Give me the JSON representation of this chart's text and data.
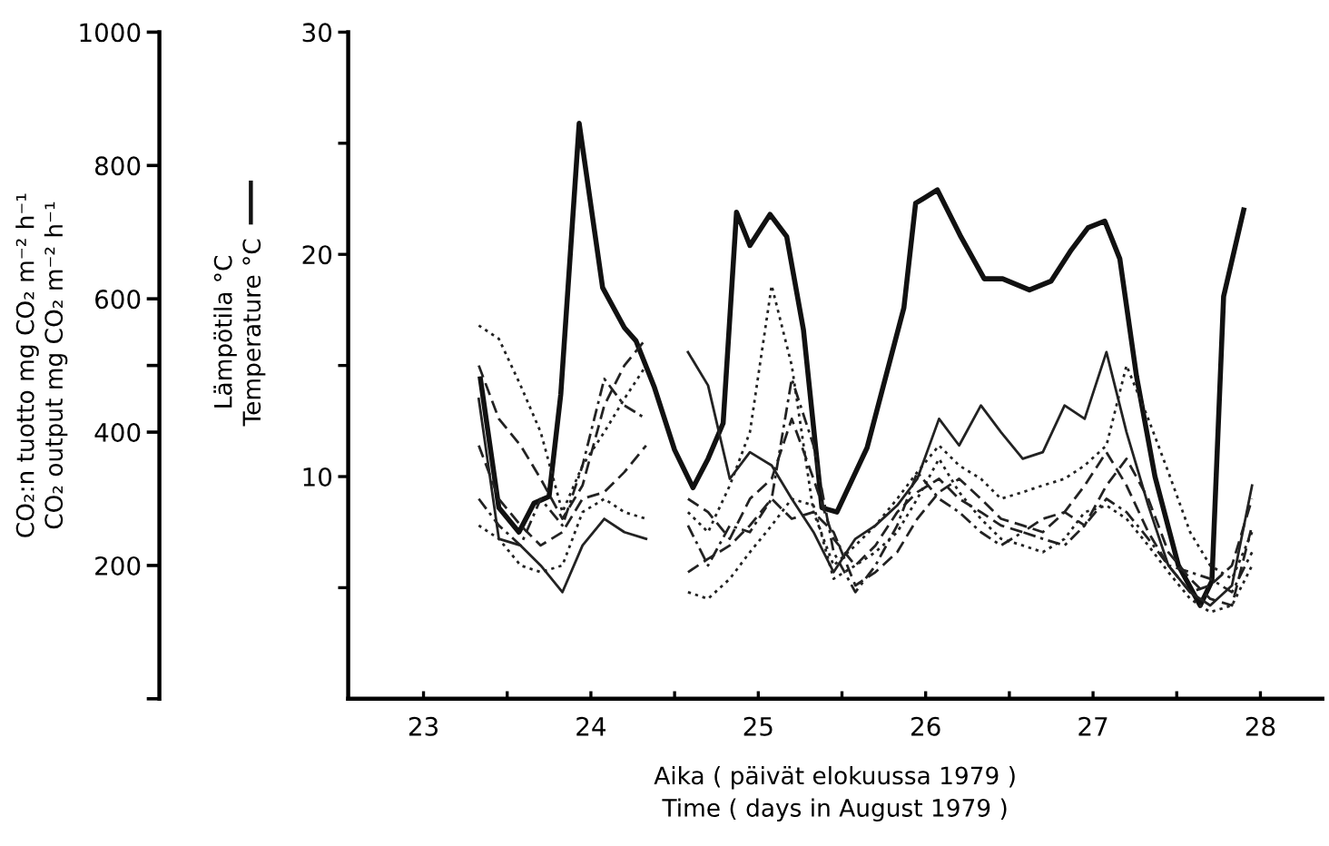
{
  "chart_data": {
    "type": "line",
    "xlabel": "Aika ( päivät elokuussa 1979 )\nTime ( days in August 1979 )",
    "ylabel": "CO₂:n tuotto mg CO₂ m⁻² h⁻¹\nCO₂ output mg CO₂ m⁻² h⁻¹",
    "y2label": "Lämpötila °C\nTemperature °C",
    "xlim": [
      22.55,
      28.37
    ],
    "xticks": [
      23,
      {
        "value": 23.5,
        "label": null
      },
      24,
      {
        "value": 24.5,
        "label": null
      },
      25,
      {
        "value": 25.5,
        "label": null
      },
      26,
      {
        "value": 26.5,
        "label": null
      },
      27,
      {
        "value": 27.5,
        "label": null
      },
      28
    ],
    "ylim": [
      0,
      1000
    ],
    "yticks": [
      {
        "value": 0,
        "label": null
      },
      200,
      {
        "value": 500,
        "label": null
      },
      400,
      600,
      800,
      1000
    ],
    "y2lim": [
      0,
      30
    ],
    "y2ticks": [
      {
        "value": 5,
        "label": null
      },
      10,
      {
        "value": 15,
        "label": null
      },
      20,
      {
        "value": 25,
        "label": null
      },
      30
    ],
    "grid": false,
    "legend": false,
    "marker": "none",
    "x": [
      23.33,
      23.45,
      23.58,
      23.7,
      23.83,
      23.95,
      24.08,
      24.2,
      24.33,
      24.45,
      24.58,
      24.7,
      24.83,
      24.95,
      25.08,
      25.2,
      25.33,
      25.45,
      25.58,
      25.7,
      25.83,
      25.95,
      26.08,
      26.2,
      26.33,
      26.45,
      26.58,
      26.7,
      26.83,
      26.95,
      27.08,
      27.2,
      27.33,
      27.45,
      27.58,
      27.7,
      27.83,
      27.95
    ],
    "series": [
      {
        "axis": "y2",
        "color": "#111111",
        "line_style": "solid",
        "x": [
          23.34,
          23.45,
          23.57,
          23.66,
          23.75,
          23.82,
          23.93,
          24.07,
          24.2,
          24.27,
          24.38,
          24.5,
          24.61,
          24.7,
          24.79,
          24.87,
          24.95,
          25.07,
          25.17,
          25.27,
          25.38,
          25.47,
          25.65,
          25.87,
          25.94,
          26.07,
          26.21,
          26.35,
          26.46,
          26.62,
          26.75,
          26.87,
          26.97,
          27.07,
          27.16,
          27.26,
          27.37,
          27.51,
          27.64,
          27.71,
          27.78,
          27.9
        ],
        "values": [
          14.4,
          8.6,
          7.5,
          8.8,
          9.1,
          13.7,
          25.9,
          18.5,
          16.7,
          16.1,
          14.0,
          11.2,
          9.5,
          10.8,
          12.4,
          21.9,
          20.4,
          21.8,
          20.8,
          16.6,
          8.6,
          8.4,
          11.3,
          17.6,
          22.3,
          22.9,
          20.8,
          18.9,
          18.9,
          18.4,
          18.8,
          20.2,
          21.2,
          21.5,
          19.8,
          14.5,
          10.0,
          6.0,
          4.2,
          5.3,
          18.1,
          22.0
        ]
      },
      {
        "color": "#222222",
        "line_style": "solid",
        "values": [
          450,
          240,
          230,
          200,
          160,
          230,
          270,
          250,
          240,
          null,
          520,
          470,
          330,
          370,
          350,
          300,
          250,
          190,
          240,
          260,
          290,
          330,
          420,
          380,
          440,
          400,
          360,
          370,
          440,
          420,
          520,
          400,
          290,
          200,
          160,
          140,
          170,
          320
        ]
      },
      {
        "color": "#222222",
        "line_style": "dotted",
        "values": [
          560,
          540,
          470,
          400,
          280,
          350,
          400,
          450,
          500,
          null,
          280,
          250,
          320,
          400,
          620,
          500,
          280,
          200,
          230,
          260,
          300,
          340,
          380,
          350,
          330,
          300,
          310,
          320,
          330,
          350,
          380,
          500,
          420,
          340,
          250,
          200,
          180,
          250
        ]
      },
      {
        "color": "#222222",
        "line_style": "dashed",
        "values": [
          500,
          420,
          380,
          330,
          270,
          320,
          440,
          500,
          540,
          null,
          300,
          280,
          240,
          300,
          330,
          420,
          330,
          240,
          200,
          230,
          280,
          310,
          330,
          300,
          280,
          260,
          250,
          270,
          280,
          260,
          320,
          360,
          300,
          220,
          180,
          150,
          140,
          260
        ]
      },
      {
        "color": "#222222",
        "line_style": "dashdot",
        "values": [
          300,
          260,
          230,
          300,
          260,
          350,
          480,
          440,
          420,
          null,
          260,
          200,
          260,
          250,
          300,
          480,
          380,
          220,
          160,
          200,
          260,
          340,
          300,
          280,
          250,
          230,
          250,
          240,
          230,
          260,
          300,
          280,
          240,
          200,
          190,
          180,
          160,
          220
        ]
      },
      {
        "color": "#222222",
        "line_style": "dashed",
        "values": [
          380,
          300,
          260,
          230,
          250,
          300,
          310,
          340,
          380,
          null,
          190,
          210,
          230,
          260,
          300,
          270,
          280,
          250,
          170,
          190,
          220,
          270,
          310,
          330,
          300,
          270,
          260,
          250,
          280,
          320,
          370,
          320,
          250,
          200,
          160,
          170,
          200,
          300
        ]
      },
      {
        "color": "#222222",
        "line_style": "dotted",
        "values": [
          260,
          240,
          200,
          190,
          200,
          280,
          300,
          280,
          270,
          null,
          160,
          150,
          180,
          220,
          260,
          300,
          290,
          180,
          200,
          220,
          250,
          300,
          360,
          310,
          270,
          240,
          230,
          220,
          240,
          280,
          290,
          270,
          230,
          190,
          150,
          130,
          140,
          200
        ]
      }
    ]
  }
}
